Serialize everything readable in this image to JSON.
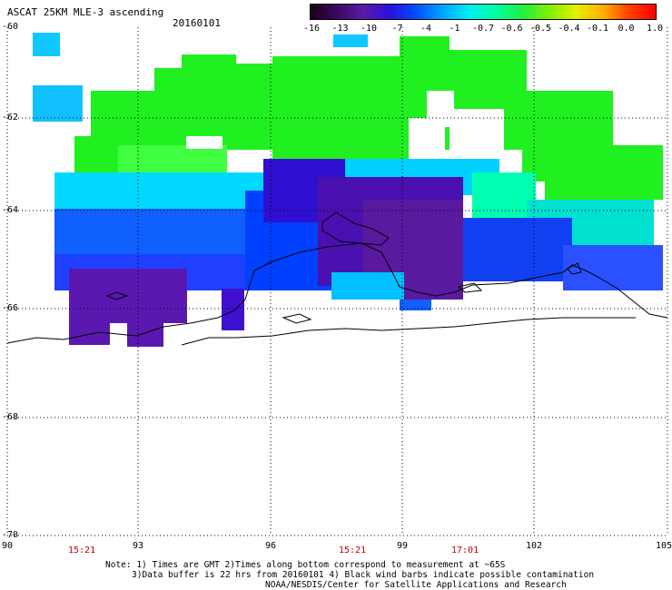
{
  "title": "ASCAT 25KM MLE-3 ascending",
  "date": "20160101",
  "colorbar": {
    "labels": [
      "-16",
      "-13",
      "-10",
      "-7",
      "-4",
      "-1",
      "-0.7",
      "-0.6",
      "-0.5",
      "-0.4",
      "-0.1",
      "0.0",
      "1.0"
    ],
    "colors": [
      "#1a0012",
      "#3a0a60",
      "#5a1aa8",
      "#2a10e0",
      "#0050ff",
      "#00a8ff",
      "#00f0f0",
      "#00ffa0",
      "#20f040",
      "#80f000",
      "#e0f000",
      "#ffb000",
      "#ff4000",
      "#ff0000"
    ]
  },
  "lat_labels": [
    "-60",
    "-62",
    "-64",
    "-66",
    "-68",
    "-70"
  ],
  "lon_labels": [
    "90",
    "93",
    "96",
    "99",
    "102",
    "105"
  ],
  "times": [
    "15:21",
    "15:21",
    "17:01"
  ],
  "notes": [
    "Note: 1) Times are GMT 2)Times along bottom correspond to measurement at ~65S",
    "3)Data buffer is 22 hrs from 20160101 4) Black wind barbs indicate possible contamination",
    "NOAA/NESDIS/Center for Satellite Applications and Research"
  ]
}
